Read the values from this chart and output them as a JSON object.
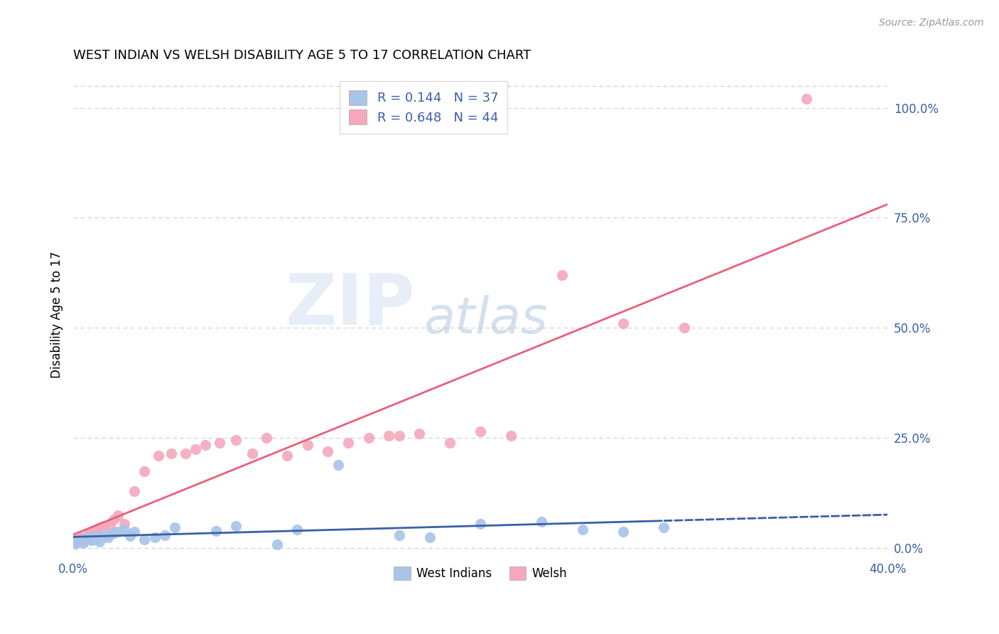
{
  "title": "WEST INDIAN VS WELSH DISABILITY AGE 5 TO 17 CORRELATION CHART",
  "source": "Source: ZipAtlas.com",
  "ylabel": "Disability Age 5 to 17",
  "xlim": [
    0.0,
    0.4
  ],
  "ylim": [
    -0.02,
    1.08
  ],
  "plot_ylim": [
    0.0,
    1.08
  ],
  "yticks_right": [
    0.0,
    0.25,
    0.5,
    0.75,
    1.0
  ],
  "ytick_labels_right": [
    "0.0%",
    "25.0%",
    "50.0%",
    "75.0%",
    "100.0%"
  ],
  "xticks": [
    0.0,
    0.1,
    0.2,
    0.3,
    0.4
  ],
  "xtick_labels": [
    "0.0%",
    "",
    "",
    "",
    "40.0%"
  ],
  "west_indian_color": "#a8c4e8",
  "welsh_color": "#f4a8bc",
  "west_indian_line_color": "#3a5fa8",
  "welsh_line_color": "#e8607a",
  "west_indian_R": 0.144,
  "west_indian_N": 37,
  "welsh_R": 0.648,
  "welsh_N": 44,
  "legend_label_1": "West Indians",
  "legend_label_2": "Welsh",
  "watermark_zip": "ZIP",
  "watermark_atlas": "atlas",
  "background_color": "#ffffff",
  "grid_color": "#cccccc",
  "west_indian_x": [
    0.001,
    0.002,
    0.003,
    0.004,
    0.005,
    0.006,
    0.007,
    0.008,
    0.009,
    0.01,
    0.011,
    0.012,
    0.013,
    0.015,
    0.017,
    0.018,
    0.02,
    0.022,
    0.025,
    0.028,
    0.03,
    0.035,
    0.04,
    0.045,
    0.05,
    0.07,
    0.08,
    0.1,
    0.11,
    0.13,
    0.16,
    0.175,
    0.2,
    0.23,
    0.25,
    0.27,
    0.29
  ],
  "west_indian_y": [
    0.01,
    0.015,
    0.018,
    0.02,
    0.012,
    0.022,
    0.025,
    0.02,
    0.018,
    0.025,
    0.022,
    0.028,
    0.015,
    0.03,
    0.025,
    0.032,
    0.035,
    0.038,
    0.042,
    0.028,
    0.038,
    0.02,
    0.025,
    0.03,
    0.048,
    0.04,
    0.05,
    0.008,
    0.042,
    0.19,
    0.03,
    0.025,
    0.055,
    0.06,
    0.042,
    0.038,
    0.048
  ],
  "welsh_x": [
    0.001,
    0.002,
    0.003,
    0.004,
    0.005,
    0.006,
    0.007,
    0.008,
    0.009,
    0.01,
    0.011,
    0.012,
    0.013,
    0.015,
    0.018,
    0.02,
    0.022,
    0.025,
    0.03,
    0.035,
    0.042,
    0.048,
    0.055,
    0.06,
    0.065,
    0.072,
    0.08,
    0.088,
    0.095,
    0.105,
    0.115,
    0.125,
    0.135,
    0.145,
    0.155,
    0.16,
    0.17,
    0.185,
    0.2,
    0.215,
    0.24,
    0.27,
    0.3,
    0.36
  ],
  "welsh_y": [
    0.018,
    0.02,
    0.022,
    0.025,
    0.015,
    0.025,
    0.03,
    0.035,
    0.032,
    0.04,
    0.038,
    0.042,
    0.048,
    0.05,
    0.052,
    0.065,
    0.075,
    0.055,
    0.13,
    0.175,
    0.21,
    0.215,
    0.215,
    0.225,
    0.235,
    0.24,
    0.245,
    0.215,
    0.25,
    0.21,
    0.235,
    0.22,
    0.24,
    0.25,
    0.255,
    0.255,
    0.26,
    0.24,
    0.265,
    0.255,
    0.62,
    0.51,
    0.5,
    1.02
  ],
  "wi_line_solid_end": 0.29,
  "wi_line_dash_start": 0.29,
  "wi_line_end": 0.4,
  "welsh_line_start": 0.0,
  "welsh_line_end": 0.4
}
